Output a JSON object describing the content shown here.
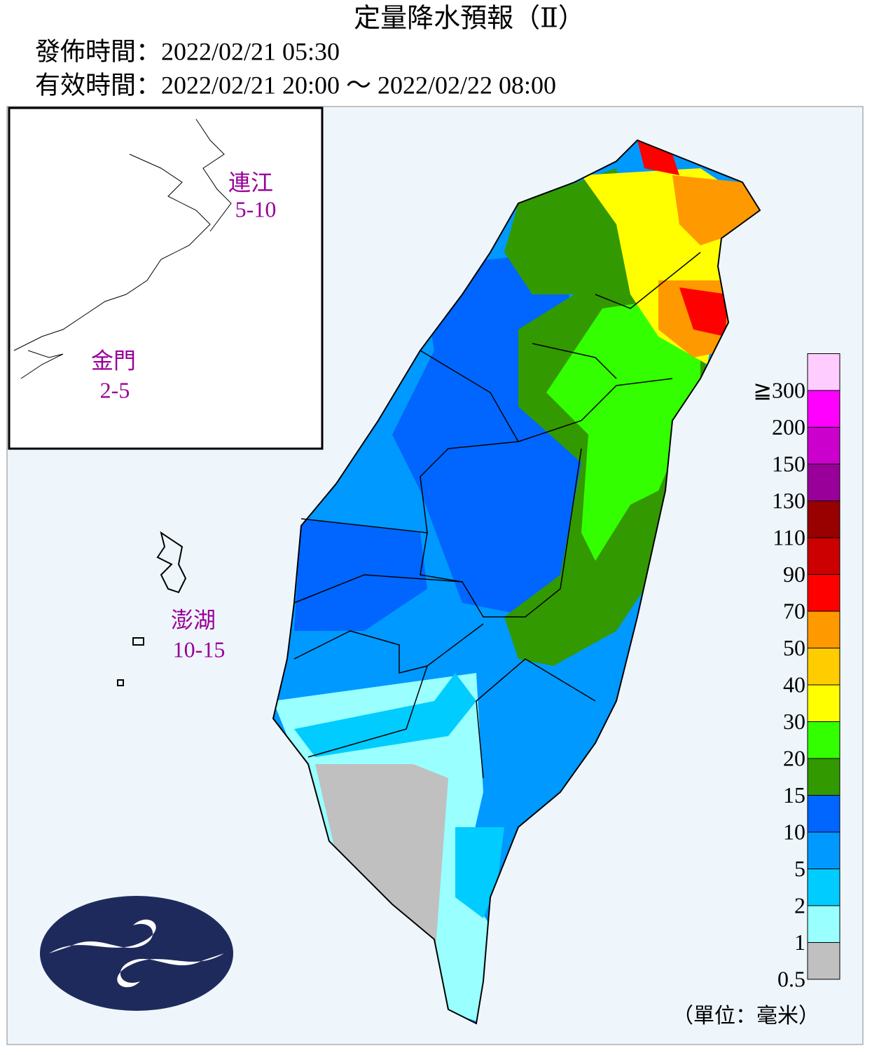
{
  "header": {
    "title": "定量降水預報（Ⅱ）",
    "issued": "發佈時間：2022/02/21 05:30",
    "valid": "有效時間：2022/02/21 20:00 ～ 2022/02/22 08:00"
  },
  "regions": [
    {
      "name": "連江",
      "range": "5-10"
    },
    {
      "name": "金門",
      "range": "2-5"
    },
    {
      "name": "澎湖",
      "range": "10-15"
    }
  ],
  "legend": {
    "labels": [
      "0.5",
      "1",
      "2",
      "5",
      "10",
      "15",
      "20",
      "30",
      "40",
      "50",
      "70",
      "90",
      "110",
      "130",
      "150",
      "200",
      "≧300"
    ],
    "colors": [
      "#c0c0c0",
      "#99ffff",
      "#00ccff",
      "#0099ff",
      "#0066ff",
      "#339900",
      "#33ff00",
      "#ffff00",
      "#ffcc00",
      "#ff9900",
      "#ff0000",
      "#cc0000",
      "#990000",
      "#990099",
      "#cc00cc",
      "#ff00ff",
      "#ffccff"
    ],
    "unit": "（單位：毫米）"
  }
}
